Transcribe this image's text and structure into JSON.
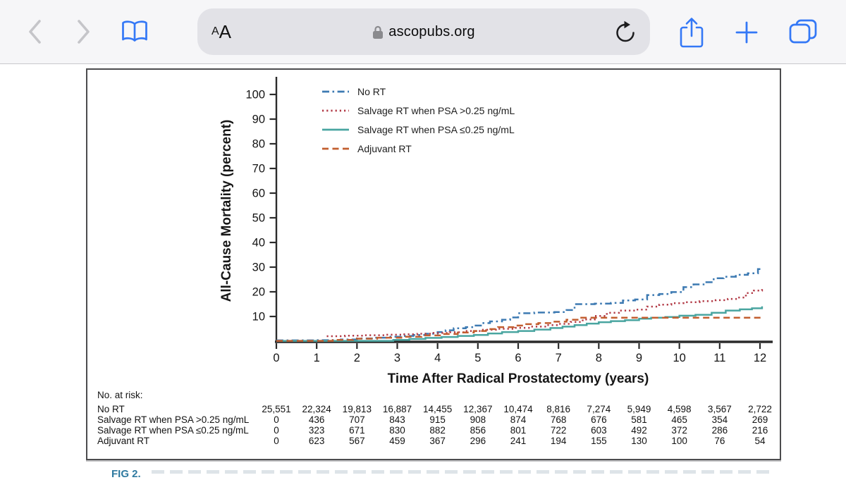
{
  "browser": {
    "reader_label_small": "A",
    "reader_label_big": "A",
    "url": "ascopubs.org",
    "accent_color": "#3478F6",
    "disabled_icon_color": "#C5C5C9",
    "lock_color": "#8A8A8E"
  },
  "chart_data": {
    "type": "line",
    "subtype": "step-survival-curves",
    "title": "",
    "xlabel": "Time After Radical Prostatectomy (years)",
    "ylabel": "All-Cause Mortality (percent)",
    "xlim": [
      0,
      12
    ],
    "ylim": [
      0,
      100
    ],
    "xticks": [
      0,
      1,
      2,
      3,
      4,
      5,
      6,
      7,
      8,
      9,
      10,
      11,
      12
    ],
    "yticks": [
      10,
      20,
      30,
      40,
      50,
      60,
      70,
      80,
      90,
      100
    ],
    "grid": false,
    "legend_position": "top-left-inside",
    "series": [
      {
        "name": "No RT",
        "color": "#3D7AB2",
        "dash": "dashdot",
        "points": [
          [
            0,
            0.3
          ],
          [
            1.0,
            0.4
          ],
          [
            1.6,
            0.7
          ],
          [
            2.0,
            1.1
          ],
          [
            2.4,
            1.4
          ],
          [
            2.8,
            1.8
          ],
          [
            3.1,
            2.1
          ],
          [
            3.4,
            2.5
          ],
          [
            3.7,
            3.0
          ],
          [
            4.0,
            3.7
          ],
          [
            4.2,
            4.4
          ],
          [
            4.4,
            5.2
          ],
          [
            4.7,
            5.7
          ],
          [
            4.9,
            6.3
          ],
          [
            5.1,
            7.3
          ],
          [
            5.3,
            8.0
          ],
          [
            5.6,
            8.7
          ],
          [
            5.8,
            9.6
          ],
          [
            6.0,
            11.3
          ],
          [
            6.4,
            11.6
          ],
          [
            6.9,
            11.8
          ],
          [
            7.2,
            12.6
          ],
          [
            7.4,
            15.0
          ],
          [
            7.9,
            15.2
          ],
          [
            8.3,
            15.5
          ],
          [
            8.6,
            16.5
          ],
          [
            8.9,
            16.9
          ],
          [
            9.2,
            18.7
          ],
          [
            9.5,
            19.1
          ],
          [
            9.8,
            19.9
          ],
          [
            10.1,
            21.9
          ],
          [
            10.35,
            23.0
          ],
          [
            10.6,
            23.9
          ],
          [
            10.85,
            25.5
          ],
          [
            11.1,
            26.1
          ],
          [
            11.4,
            26.9
          ],
          [
            11.7,
            27.5
          ],
          [
            11.95,
            29.2
          ],
          [
            12.05,
            29.5
          ]
        ]
      },
      {
        "name": "Salvage RT when PSA >0.25 ng/mL",
        "color": "#B23A46",
        "dash": "dotted",
        "points": [
          [
            1.25,
            2.0
          ],
          [
            1.7,
            2.2
          ],
          [
            2.2,
            2.4
          ],
          [
            2.7,
            2.6
          ],
          [
            3.1,
            2.8
          ],
          [
            3.5,
            3.0
          ],
          [
            3.9,
            3.3
          ],
          [
            4.3,
            3.6
          ],
          [
            4.7,
            4.1
          ],
          [
            5.1,
            4.6
          ],
          [
            5.5,
            5.0
          ],
          [
            5.9,
            5.4
          ],
          [
            6.3,
            5.9
          ],
          [
            6.7,
            6.5
          ],
          [
            7.0,
            7.0
          ],
          [
            7.3,
            7.8
          ],
          [
            7.6,
            8.8
          ],
          [
            7.9,
            10.2
          ],
          [
            8.2,
            11.5
          ],
          [
            8.5,
            12.4
          ],
          [
            8.9,
            12.8
          ],
          [
            9.2,
            14.0
          ],
          [
            9.5,
            14.8
          ],
          [
            9.8,
            15.4
          ],
          [
            10.1,
            15.8
          ],
          [
            10.5,
            16.2
          ],
          [
            10.9,
            16.6
          ],
          [
            11.2,
            17.1
          ],
          [
            11.45,
            17.7
          ],
          [
            11.65,
            19.5
          ],
          [
            11.85,
            20.5
          ],
          [
            12.05,
            21.7
          ]
        ]
      },
      {
        "name": "Salvage RT when PSA ≤0.25 ng/mL",
        "color": "#49A5A0",
        "dash": "solid",
        "points": [
          [
            0,
            0.1
          ],
          [
            2.9,
            0.5
          ],
          [
            3.3,
            0.9
          ],
          [
            3.7,
            1.3
          ],
          [
            4.1,
            1.7
          ],
          [
            4.5,
            2.1
          ],
          [
            4.9,
            2.5
          ],
          [
            5.25,
            3.1
          ],
          [
            5.6,
            3.7
          ],
          [
            6.0,
            4.1
          ],
          [
            6.4,
            4.7
          ],
          [
            6.8,
            5.3
          ],
          [
            7.1,
            5.9
          ],
          [
            7.4,
            6.5
          ],
          [
            7.7,
            7.1
          ],
          [
            8.0,
            7.7
          ],
          [
            8.3,
            8.1
          ],
          [
            8.65,
            8.5
          ],
          [
            9.0,
            9.1
          ],
          [
            9.3,
            9.5
          ],
          [
            9.65,
            9.8
          ],
          [
            10.0,
            10.3
          ],
          [
            10.4,
            10.7
          ],
          [
            10.8,
            11.5
          ],
          [
            11.15,
            12.4
          ],
          [
            11.5,
            12.9
          ],
          [
            11.8,
            13.3
          ],
          [
            12.05,
            14.1
          ]
        ]
      },
      {
        "name": "Adjuvant RT",
        "color": "#C25E2F",
        "dash": "dashed",
        "points": [
          [
            0,
            0.1
          ],
          [
            1.4,
            0.5
          ],
          [
            1.9,
            1.0
          ],
          [
            2.5,
            1.4
          ],
          [
            3.1,
            1.8
          ],
          [
            3.6,
            2.3
          ],
          [
            4.1,
            2.9
          ],
          [
            4.5,
            3.5
          ],
          [
            4.9,
            4.1
          ],
          [
            5.2,
            4.9
          ],
          [
            5.5,
            5.7
          ],
          [
            5.9,
            6.3
          ],
          [
            6.2,
            6.9
          ],
          [
            6.5,
            7.3
          ],
          [
            6.9,
            7.9
          ],
          [
            7.2,
            8.7
          ],
          [
            7.5,
            9.5
          ],
          [
            12.05,
            9.7
          ]
        ]
      }
    ]
  },
  "risk_table": {
    "header": "No. at risk:",
    "rows": [
      {
        "label": "No RT",
        "values": [
          "25,551",
          "22,324",
          "19,813",
          "16,887",
          "14,455",
          "12,367",
          "10,474",
          "8,816",
          "7,274",
          "5,949",
          "4,598",
          "3,567",
          "2,722"
        ]
      },
      {
        "label": "Salvage RT when PSA >0.25 ng/mL",
        "values": [
          "0",
          "436",
          "707",
          "843",
          "915",
          "908",
          "874",
          "768",
          "676",
          "581",
          "465",
          "354",
          "269"
        ]
      },
      {
        "label": "Salvage RT when PSA ≤0.25 ng/mL",
        "values": [
          "0",
          "323",
          "671",
          "830",
          "882",
          "856",
          "801",
          "722",
          "603",
          "492",
          "372",
          "286",
          "216"
        ]
      },
      {
        "label": "Adjuvant RT",
        "values": [
          "0",
          "623",
          "567",
          "459",
          "367",
          "296",
          "241",
          "194",
          "155",
          "130",
          "100",
          "76",
          "54"
        ]
      }
    ]
  },
  "caption": {
    "prefix": "FIG 2."
  }
}
